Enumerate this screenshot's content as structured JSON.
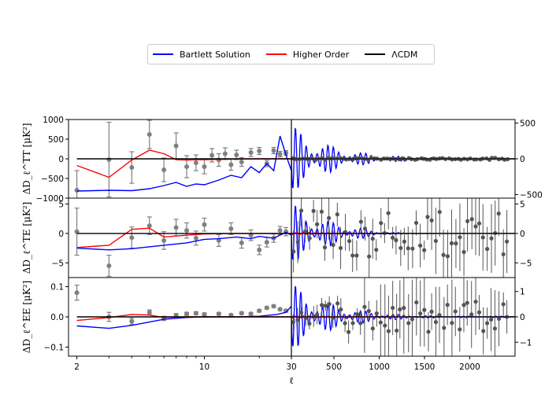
{
  "legend": {
    "items": [
      {
        "label": "Bartlett Solution",
        "color": "#0000ff"
      },
      {
        "label": "Higher Order",
        "color": "#ff0000"
      },
      {
        "label": "ΛCDM",
        "color": "#000000"
      }
    ]
  },
  "xlabel": "ℓ",
  "chart_data": {
    "type": "line",
    "x_axis": {
      "scale": "log below ℓ=30, linear above ℓ=30",
      "low_ticks": [
        "2",
        "10",
        "30"
      ],
      "high_ticks": [
        "500",
        "1000",
        "1500",
        "2000"
      ],
      "range_low": [
        1.8,
        30
      ],
      "range_high": [
        30,
        2500
      ]
    },
    "panels": [
      {
        "name": "TT",
        "ylabel": "ΔD_ℓ^TT [μK²]",
        "ylim_left": [
          -1000,
          1000
        ],
        "ylim_right": [
          -550,
          550
        ],
        "left_ticks": [
          "1000",
          "500",
          "0",
          "−500",
          "−1000"
        ],
        "right_ticks": [
          "500",
          "0",
          "−500"
        ],
        "series": [
          {
            "name": "Bartlett Solution",
            "color": "#0000ff",
            "x": [
              2,
              3,
              4,
              5,
              6,
              7,
              8,
              9,
              10,
              12,
              14,
              16,
              18,
              20,
              22,
              24,
              26,
              28,
              30
            ],
            "y": [
              -820,
              -800,
              -810,
              -760,
              -680,
              -600,
              -700,
              -640,
              -660,
              -540,
              -420,
              -480,
              -200,
              -350,
              -120,
              -300,
              580,
              100,
              -300
            ]
          },
          {
            "name": "Higher Order",
            "color": "#ff0000",
            "x": [
              2,
              3,
              4,
              5,
              6,
              7,
              8,
              10,
              15,
              20,
              30
            ],
            "y": [
              -170,
              -470,
              -30,
              220,
              130,
              -20,
              -30,
              -20,
              -5,
              0,
              0
            ]
          },
          {
            "name": "ΛCDM",
            "color": "#000000",
            "x": [
              2,
              30
            ],
            "y": [
              0,
              0
            ]
          }
        ],
        "points": {
          "x": [
            2,
            3,
            4,
            5,
            6,
            7,
            8,
            9,
            10,
            11,
            12,
            13,
            14,
            15,
            16,
            18,
            20,
            22,
            24,
            26,
            28
          ],
          "y": [
            -800,
            -20,
            -220,
            620,
            -280,
            330,
            -200,
            -100,
            -200,
            90,
            -30,
            130,
            -150,
            100,
            -80,
            160,
            200,
            -120,
            210,
            120,
            150
          ],
          "err": [
            500,
            950,
            400,
            360,
            300,
            330,
            280,
            200,
            180,
            170,
            160,
            150,
            140,
            120,
            110,
            100,
            90,
            80,
            80,
            70,
            60
          ]
        }
      },
      {
        "name": "TE",
        "ylabel": "ΔD_ℓ^TE [μK²]",
        "ylim_left": [
          -7.5,
          6
        ],
        "ylim_right": [
          -7.5,
          6
        ],
        "left_ticks": [
          "5",
          "0",
          "−5"
        ],
        "right_ticks": [
          "5",
          "0",
          "−5"
        ],
        "series": [
          {
            "name": "Bartlett Solution",
            "color": "#0000ff",
            "x": [
              2,
              3,
              4,
              6,
              8,
              10,
              12,
              15,
              18,
              20,
              24,
              28,
              30
            ],
            "y": [
              -2.5,
              -2.8,
              -2.6,
              -2.0,
              -1.6,
              -1.0,
              -0.9,
              -0.6,
              -0.9,
              -0.5,
              -0.8,
              0.2,
              -0.3
            ]
          },
          {
            "name": "Higher Order",
            "color": "#ff0000",
            "x": [
              2,
              3,
              4,
              5,
              6,
              8,
              10,
              15,
              20,
              30
            ],
            "y": [
              -2.4,
              -2.0,
              0.7,
              0.9,
              -0.6,
              -0.3,
              -0.1,
              0,
              0,
              0
            ]
          },
          {
            "name": "ΛCDM",
            "color": "#000000",
            "x": [
              2,
              30
            ],
            "y": [
              0,
              0
            ]
          }
        ],
        "points": {
          "x": [
            2,
            3,
            4,
            5,
            6,
            7,
            8,
            9,
            10,
            12,
            14,
            16,
            18,
            20,
            22,
            24,
            26,
            28
          ],
          "y": [
            0.3,
            -5.5,
            -0.7,
            1.3,
            -1.2,
            1.0,
            0.5,
            -0.8,
            1.5,
            -1.2,
            0.8,
            -1.6,
            -0.3,
            -2.8,
            -1.5,
            -0.8,
            0.5,
            0.3
          ],
          "err": [
            4.0,
            1.8,
            1.8,
            1.5,
            1.5,
            1.4,
            1.3,
            1.2,
            1.1,
            1.0,
            1.0,
            0.9,
            0.9,
            0.8,
            0.8,
            0.7,
            0.7,
            0.7
          ]
        }
      },
      {
        "name": "EE",
        "ylabel": "ΔD_ℓ^EE [μK²]",
        "ylim_left": [
          -0.13,
          0.13
        ],
        "ylim_right": [
          -1.55,
          1.55
        ],
        "left_ticks": [
          "0.1",
          "0.0",
          "−0.1"
        ],
        "right_ticks": [
          "1",
          "0",
          "−1"
        ],
        "series": [
          {
            "name": "Bartlett Solution",
            "color": "#0000ff",
            "x": [
              2,
              3,
              4,
              6,
              8,
              10,
              15,
              20,
              25,
              28,
              30
            ],
            "y": [
              -0.03,
              -0.038,
              -0.028,
              -0.008,
              -0.002,
              0.0,
              0.0,
              0.002,
              0.008,
              0.015,
              0.035
            ]
          },
          {
            "name": "Higher Order",
            "color": "#ff0000",
            "x": [
              2,
              3,
              4,
              5,
              6,
              8,
              10,
              30
            ],
            "y": [
              -0.012,
              -0.002,
              0.008,
              0.006,
              -0.002,
              0.0,
              0.0,
              0.0
            ]
          },
          {
            "name": "ΛCDM",
            "color": "#000000",
            "x": [
              2,
              30
            ],
            "y": [
              0,
              0
            ]
          }
        ],
        "points": {
          "x": [
            2,
            3,
            4,
            5,
            6,
            7,
            8,
            9,
            10,
            12,
            14,
            16,
            18,
            20,
            22,
            24,
            26,
            28
          ],
          "y": [
            0.08,
            0.0,
            -0.015,
            0.015,
            -0.005,
            0.005,
            0.01,
            0.012,
            0.008,
            0.01,
            0.006,
            0.012,
            0.01,
            0.02,
            0.03,
            0.035,
            0.025,
            0.02
          ],
          "err": [
            0.025,
            0.015,
            0.01,
            0.008,
            0.007,
            0.006,
            0.005,
            0.005,
            0.005,
            0.004,
            0.004,
            0.004,
            0.004,
            0.004,
            0.004,
            0.004,
            0.004,
            0.004
          ]
        }
      }
    ]
  }
}
